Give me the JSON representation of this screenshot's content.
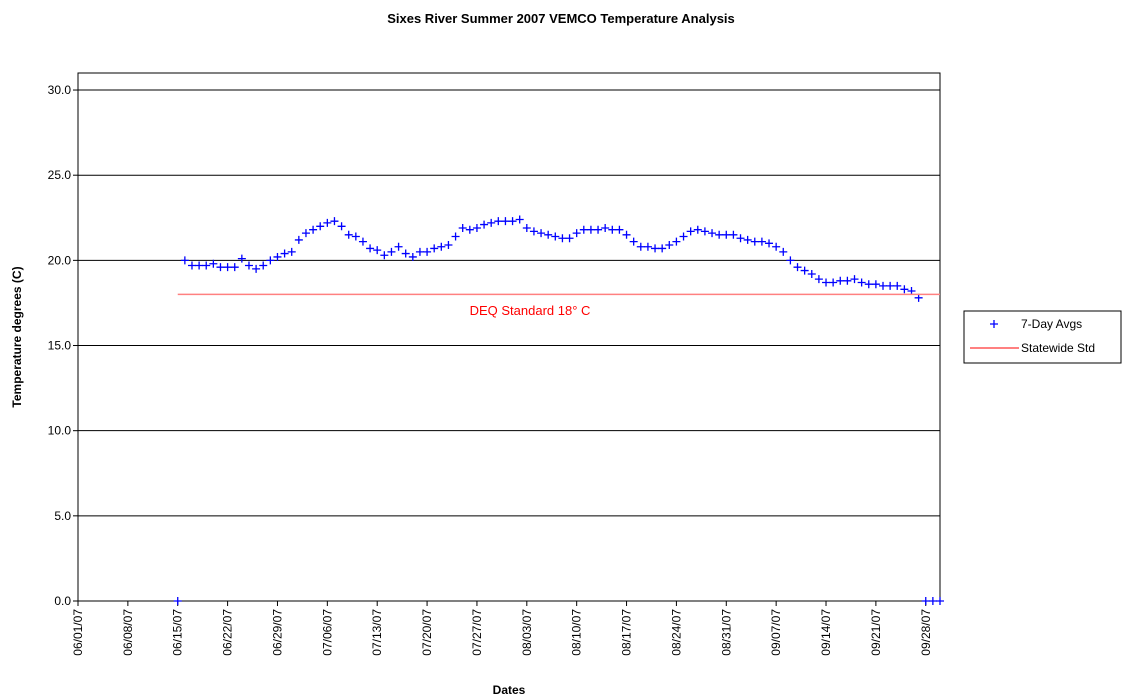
{
  "chart_data": {
    "type": "scatter",
    "title": "Sixes River Summer 2007 VEMCO Temperature Analysis",
    "x_label": "Dates",
    "y_label": "Temperature degrees (C)",
    "annotation": "DEQ Standard 18° C",
    "x": [
      "06/15/07",
      "06/16/07",
      "06/17/07",
      "06/18/07",
      "06/19/07",
      "06/20/07",
      "06/21/07",
      "06/22/07",
      "06/23/07",
      "06/24/07",
      "06/25/07",
      "06/26/07",
      "06/27/07",
      "06/28/07",
      "06/29/07",
      "06/30/07",
      "07/01/07",
      "07/02/07",
      "07/03/07",
      "07/04/07",
      "07/05/07",
      "07/06/07",
      "07/07/07",
      "07/08/07",
      "07/09/07",
      "07/10/07",
      "07/11/07",
      "07/12/07",
      "07/13/07",
      "07/14/07",
      "07/15/07",
      "07/16/07",
      "07/17/07",
      "07/18/07",
      "07/19/07",
      "07/20/07",
      "07/21/07",
      "07/22/07",
      "07/23/07",
      "07/24/07",
      "07/25/07",
      "07/26/07",
      "07/27/07",
      "07/28/07",
      "07/29/07",
      "07/30/07",
      "07/31/07",
      "08/01/07",
      "08/02/07",
      "08/03/07",
      "08/04/07",
      "08/05/07",
      "08/06/07",
      "08/07/07",
      "08/08/07",
      "08/09/07",
      "08/10/07",
      "08/11/07",
      "08/12/07",
      "08/13/07",
      "08/14/07",
      "08/15/07",
      "08/16/07",
      "08/17/07",
      "08/18/07",
      "08/19/07",
      "08/20/07",
      "08/21/07",
      "08/22/07",
      "08/23/07",
      "08/24/07",
      "08/25/07",
      "08/26/07",
      "08/27/07",
      "08/28/07",
      "08/29/07",
      "08/30/07",
      "08/31/07",
      "09/01/07",
      "09/02/07",
      "09/03/07",
      "09/04/07",
      "09/05/07",
      "09/06/07",
      "09/07/07",
      "09/08/07",
      "09/09/07",
      "09/10/07",
      "09/11/07",
      "09/12/07",
      "09/13/07",
      "09/14/07",
      "09/15/07",
      "09/16/07",
      "09/17/07",
      "09/18/07",
      "09/19/07",
      "09/20/07",
      "09/21/07",
      "09/22/07",
      "09/23/07",
      "09/24/07",
      "09/25/07",
      "09/26/07",
      "09/27/07",
      "09/28/07",
      "09/29/07",
      "09/30/07"
    ],
    "series": [
      {
        "name": "7-Day Avgs",
        "color": "#0000ff",
        "marker": "+",
        "values": [
          0,
          20.0,
          19.7,
          19.7,
          19.7,
          19.8,
          19.6,
          19.6,
          19.6,
          20.1,
          19.7,
          19.5,
          19.7,
          20.0,
          20.2,
          20.4,
          20.5,
          21.2,
          21.6,
          21.8,
          22.0,
          22.2,
          22.3,
          22.0,
          21.5,
          21.4,
          21.1,
          20.7,
          20.6,
          20.3,
          20.5,
          20.8,
          20.4,
          20.2,
          20.5,
          20.5,
          20.7,
          20.8,
          20.9,
          21.4,
          21.9,
          21.8,
          21.9,
          22.1,
          22.2,
          22.3,
          22.3,
          22.3,
          22.4,
          21.9,
          21.7,
          21.6,
          21.5,
          21.4,
          21.3,
          21.3,
          21.6,
          21.8,
          21.8,
          21.8,
          21.9,
          21.8,
          21.8,
          21.5,
          21.1,
          20.8,
          20.8,
          20.7,
          20.7,
          20.9,
          21.1,
          21.4,
          21.7,
          21.8,
          21.7,
          21.6,
          21.5,
          21.5,
          21.5,
          21.3,
          21.2,
          21.1,
          21.1,
          21.0,
          20.8,
          20.5,
          20.0,
          19.6,
          19.4,
          19.2,
          18.9,
          18.7,
          18.7,
          18.8,
          18.8,
          18.9,
          18.7,
          18.6,
          18.6,
          18.5,
          18.5,
          18.5,
          18.3,
          18.2,
          17.8,
          0,
          0,
          0
        ]
      },
      {
        "name": "Statewide Std",
        "color": "#ff8080",
        "marker": "line",
        "values": [
          18,
          18,
          18,
          18,
          18,
          18,
          18,
          18,
          18,
          18,
          18,
          18,
          18,
          18,
          18,
          18,
          18,
          18,
          18,
          18,
          18,
          18,
          18,
          18,
          18,
          18,
          18,
          18,
          18,
          18,
          18,
          18,
          18,
          18,
          18,
          18,
          18,
          18,
          18,
          18,
          18,
          18,
          18,
          18,
          18,
          18,
          18,
          18,
          18,
          18,
          18,
          18,
          18,
          18,
          18,
          18,
          18,
          18,
          18,
          18,
          18,
          18,
          18,
          18,
          18,
          18,
          18,
          18,
          18,
          18,
          18,
          18,
          18,
          18,
          18,
          18,
          18,
          18,
          18,
          18,
          18,
          18,
          18,
          18,
          18,
          18,
          18,
          18,
          18,
          18,
          18,
          18,
          18,
          18,
          18,
          18,
          18,
          18,
          18,
          18,
          18,
          18,
          18,
          18,
          18,
          18,
          18,
          18
        ]
      }
    ],
    "xlim": [
      "06/01/07",
      "09/30/07"
    ],
    "xticks": [
      "06/01/07",
      "06/08/07",
      "06/15/07",
      "06/22/07",
      "06/29/07",
      "07/06/07",
      "07/13/07",
      "07/20/07",
      "07/27/07",
      "08/03/07",
      "08/10/07",
      "08/17/07",
      "08/24/07",
      "08/31/07",
      "09/07/07",
      "09/14/07",
      "09/21/07",
      "09/28/07"
    ],
    "ylim": [
      0,
      31
    ],
    "yticks": [
      {
        "value": 0,
        "label": "0.0"
      },
      {
        "value": 5,
        "label": "5.0"
      },
      {
        "value": 10,
        "label": "10.0"
      },
      {
        "value": 15,
        "label": "15.0"
      },
      {
        "value": 20,
        "label": "20.0"
      },
      {
        "value": 25,
        "label": "25.0"
      },
      {
        "value": 30,
        "label": "30.0"
      }
    ],
    "grid": true,
    "legend": "right"
  }
}
